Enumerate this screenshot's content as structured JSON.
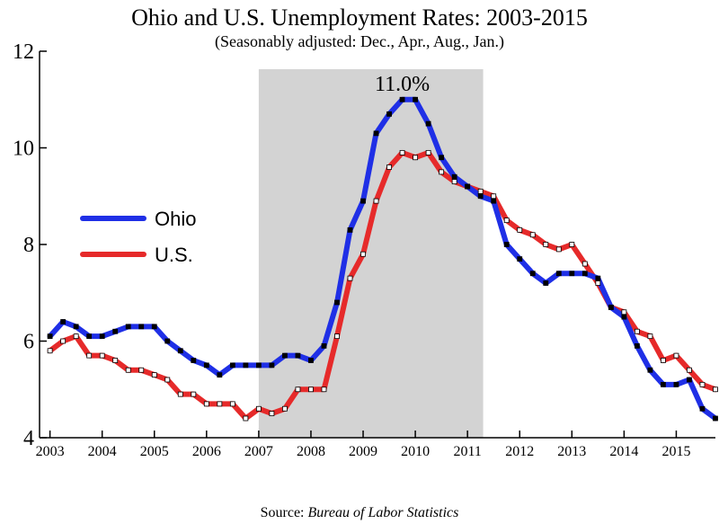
{
  "chart_data": {
    "type": "line",
    "title": "Ohio and U.S. Unemployment Rates: 2003-2015",
    "subtitle": "(Seasonably adjusted: Dec., Apr., Aug., Jan.)",
    "source_prefix": "Source: ",
    "source_name": "Bureau of Labor Statistics",
    "annotation": "11.0%",
    "x_tick_labels": [
      "2003",
      "2004",
      "2005",
      "2006",
      "2007",
      "2008",
      "2009",
      "2010",
      "2011",
      "2012",
      "2013",
      "2014",
      "2015"
    ],
    "y_ticks": [
      4,
      6,
      8,
      10,
      12
    ],
    "ylim": [
      4,
      12
    ],
    "xlim": [
      2002.8,
      2015.75
    ],
    "shaded_region": {
      "from": 2007.0,
      "to": 2011.3
    },
    "grid": false,
    "legend_position": "left-middle",
    "series": [
      {
        "name": "Ohio",
        "color": "#1f2fe6",
        "marker_fill": "#000000",
        "points": [
          [
            2003.0,
            6.1
          ],
          [
            2003.25,
            6.4
          ],
          [
            2003.5,
            6.3
          ],
          [
            2003.75,
            6.1
          ],
          [
            2004.0,
            6.1
          ],
          [
            2004.25,
            6.2
          ],
          [
            2004.5,
            6.3
          ],
          [
            2004.75,
            6.3
          ],
          [
            2005.0,
            6.3
          ],
          [
            2005.25,
            6.0
          ],
          [
            2005.5,
            5.8
          ],
          [
            2005.75,
            5.6
          ],
          [
            2006.0,
            5.5
          ],
          [
            2006.25,
            5.3
          ],
          [
            2006.5,
            5.5
          ],
          [
            2006.75,
            5.5
          ],
          [
            2007.0,
            5.5
          ],
          [
            2007.25,
            5.5
          ],
          [
            2007.5,
            5.7
          ],
          [
            2007.75,
            5.7
          ],
          [
            2008.0,
            5.6
          ],
          [
            2008.25,
            5.9
          ],
          [
            2008.5,
            6.8
          ],
          [
            2008.75,
            8.3
          ],
          [
            2009.0,
            8.9
          ],
          [
            2009.25,
            10.3
          ],
          [
            2009.5,
            10.7
          ],
          [
            2009.75,
            11.0
          ],
          [
            2010.0,
            11.0
          ],
          [
            2010.25,
            10.5
          ],
          [
            2010.5,
            9.8
          ],
          [
            2010.75,
            9.4
          ],
          [
            2011.0,
            9.2
          ],
          [
            2011.25,
            9.0
          ],
          [
            2011.5,
            8.9
          ],
          [
            2011.75,
            8.0
          ],
          [
            2012.0,
            7.7
          ],
          [
            2012.25,
            7.4
          ],
          [
            2012.5,
            7.2
          ],
          [
            2012.75,
            7.4
          ],
          [
            2013.0,
            7.4
          ],
          [
            2013.25,
            7.4
          ],
          [
            2013.5,
            7.3
          ],
          [
            2013.75,
            6.7
          ],
          [
            2014.0,
            6.5
          ],
          [
            2014.25,
            5.9
          ],
          [
            2014.5,
            5.4
          ],
          [
            2014.75,
            5.1
          ],
          [
            2015.0,
            5.1
          ],
          [
            2015.25,
            5.2
          ],
          [
            2015.5,
            4.6
          ],
          [
            2015.75,
            4.4
          ]
        ]
      },
      {
        "name": "U.S.",
        "color": "#e62a2a",
        "marker_fill": "#ffffff",
        "points": [
          [
            2003.0,
            5.8
          ],
          [
            2003.25,
            6.0
          ],
          [
            2003.5,
            6.1
          ],
          [
            2003.75,
            5.7
          ],
          [
            2004.0,
            5.7
          ],
          [
            2004.25,
            5.6
          ],
          [
            2004.5,
            5.4
          ],
          [
            2004.75,
            5.4
          ],
          [
            2005.0,
            5.3
          ],
          [
            2005.25,
            5.2
          ],
          [
            2005.5,
            4.9
          ],
          [
            2005.75,
            4.9
          ],
          [
            2006.0,
            4.7
          ],
          [
            2006.25,
            4.7
          ],
          [
            2006.5,
            4.7
          ],
          [
            2006.75,
            4.4
          ],
          [
            2007.0,
            4.6
          ],
          [
            2007.25,
            4.5
          ],
          [
            2007.5,
            4.6
          ],
          [
            2007.75,
            5.0
          ],
          [
            2008.0,
            5.0
          ],
          [
            2008.25,
            5.0
          ],
          [
            2008.5,
            6.1
          ],
          [
            2008.75,
            7.3
          ],
          [
            2009.0,
            7.8
          ],
          [
            2009.25,
            8.9
          ],
          [
            2009.5,
            9.6
          ],
          [
            2009.75,
            9.9
          ],
          [
            2010.0,
            9.8
          ],
          [
            2010.25,
            9.9
          ],
          [
            2010.5,
            9.5
          ],
          [
            2010.75,
            9.3
          ],
          [
            2011.0,
            9.2
          ],
          [
            2011.25,
            9.1
          ],
          [
            2011.5,
            9.0
          ],
          [
            2011.75,
            8.5
          ],
          [
            2012.0,
            8.3
          ],
          [
            2012.25,
            8.2
          ],
          [
            2012.5,
            8.0
          ],
          [
            2012.75,
            7.9
          ],
          [
            2013.0,
            8.0
          ],
          [
            2013.25,
            7.6
          ],
          [
            2013.5,
            7.2
          ],
          [
            2013.75,
            6.7
          ],
          [
            2014.0,
            6.6
          ],
          [
            2014.25,
            6.2
          ],
          [
            2014.5,
            6.1
          ],
          [
            2014.75,
            5.6
          ],
          [
            2015.0,
            5.7
          ],
          [
            2015.25,
            5.4
          ],
          [
            2015.5,
            5.1
          ],
          [
            2015.75,
            5.0
          ]
        ]
      }
    ]
  }
}
